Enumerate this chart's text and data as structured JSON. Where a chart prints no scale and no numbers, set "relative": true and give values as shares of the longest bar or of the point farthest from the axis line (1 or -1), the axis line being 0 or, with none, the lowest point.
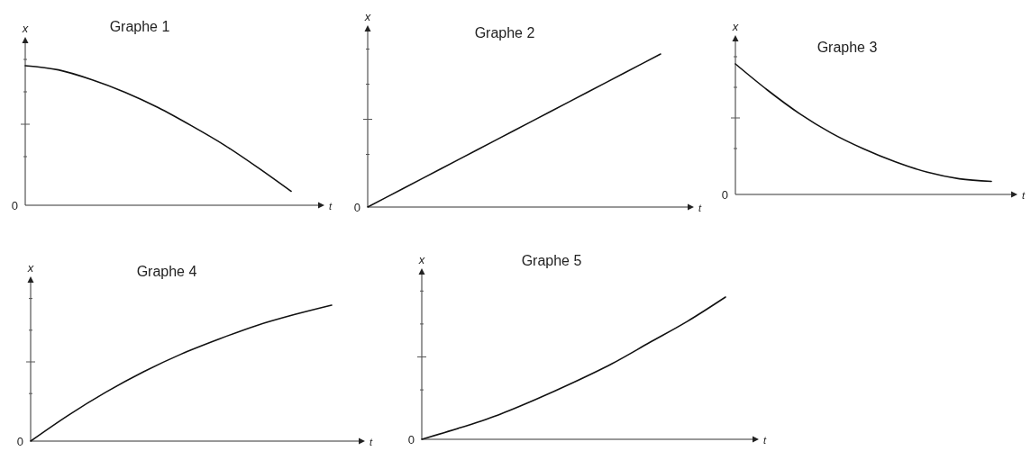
{
  "chart_data": [
    {
      "type": "line",
      "title": "Graphe 1",
      "xlabel": "t",
      "ylabel": "x",
      "relative": true,
      "annotations": [
        "0"
      ],
      "categories": [
        null,
        null,
        null,
        null,
        null,
        null,
        null,
        null,
        null
      ],
      "series": [
        {
          "color": "#111111",
          "values": [
            1,
            0.97,
            0.9,
            0.81,
            0.7,
            0.57,
            0.43,
            0.27,
            0.1
          ]
        }
      ]
    },
    {
      "type": "line",
      "title": "Graphe 2",
      "xlabel": "t",
      "ylabel": "x",
      "relative": true,
      "annotations": [
        "0"
      ],
      "categories": [
        null,
        null,
        null,
        null,
        null,
        null,
        null,
        null,
        null
      ],
      "series": [
        {
          "color": "#111111",
          "values": [
            0,
            0.125,
            0.25,
            0.375,
            0.5,
            0.625,
            0.75,
            0.875,
            1
          ]
        }
      ]
    },
    {
      "type": "line",
      "title": "Graphe 3",
      "xlabel": "t",
      "ylabel": "x",
      "relative": true,
      "annotations": [
        "0"
      ],
      "categories": [
        null,
        null,
        null,
        null,
        null,
        null,
        null,
        null,
        null
      ],
      "series": [
        {
          "color": "#111111",
          "values": [
            1,
            0.8,
            0.62,
            0.47,
            0.35,
            0.25,
            0.17,
            0.12,
            0.1
          ]
        }
      ]
    },
    {
      "type": "line",
      "title": "Graphe 4",
      "xlabel": "t",
      "ylabel": "x",
      "relative": true,
      "annotations": [
        "0"
      ],
      "categories": [
        null,
        null,
        null,
        null,
        null,
        null,
        null,
        null,
        null
      ],
      "series": [
        {
          "color": "#111111",
          "values": [
            0,
            0.19,
            0.36,
            0.51,
            0.64,
            0.75,
            0.85,
            0.93,
            1
          ]
        }
      ]
    },
    {
      "type": "line",
      "title": "Graphe 5",
      "xlabel": "t",
      "ylabel": "x",
      "relative": true,
      "annotations": [
        "0"
      ],
      "categories": [
        null,
        null,
        null,
        null,
        null,
        null,
        null,
        null,
        null
      ],
      "series": [
        {
          "color": "#111111",
          "values": [
            0,
            0.08,
            0.17,
            0.28,
            0.4,
            0.53,
            0.68,
            0.83,
            1
          ]
        }
      ]
    }
  ]
}
